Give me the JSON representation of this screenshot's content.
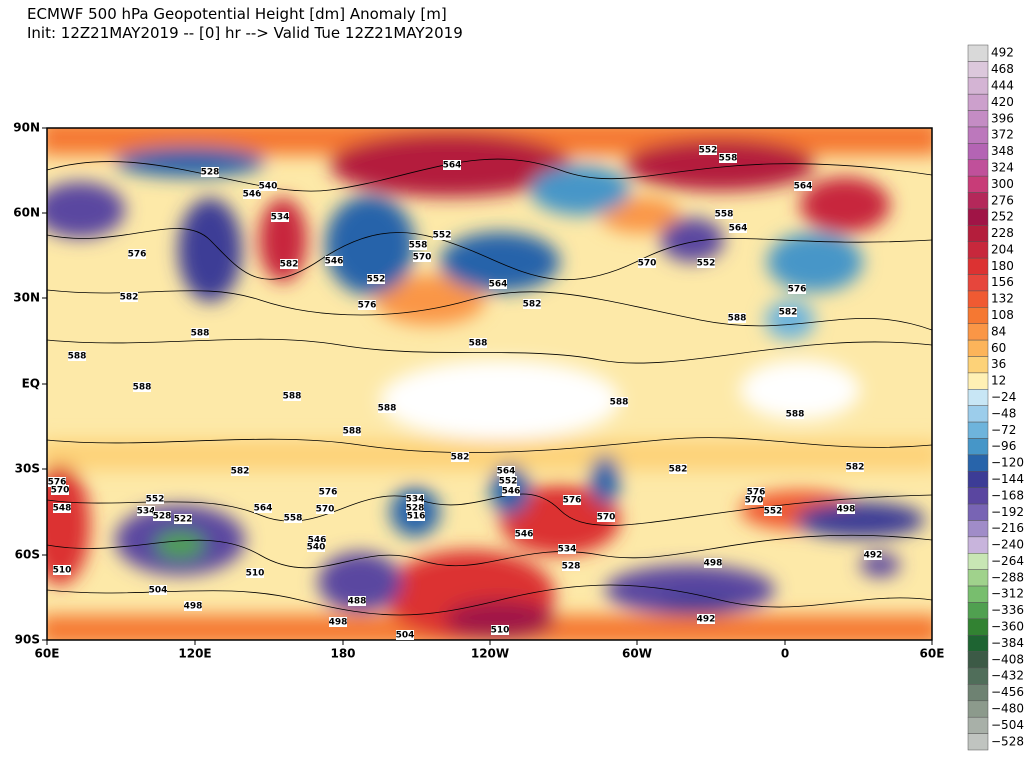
{
  "header": {
    "title": "ECMWF 500 hPa Geopotential Height [dm] Anomaly [m]",
    "subtitle": "Init: 12Z21MAY2019 -- [0] hr --> Valid Tue 12Z21MAY2019"
  },
  "map": {
    "lat_labels": [
      "90N",
      "60N",
      "30N",
      "EQ",
      "30S",
      "60S",
      "90S"
    ],
    "lon_labels": [
      "60E",
      "120E",
      "180",
      "120W",
      "60W",
      "0",
      "60E"
    ],
    "contour_labels": [
      564,
      552,
      558,
      528,
      564,
      546,
      540,
      534,
      558,
      564,
      552,
      558,
      570,
      546,
      582,
      552,
      576,
      564,
      582,
      570,
      552,
      576,
      582,
      588,
      576,
      582,
      588,
      588,
      588,
      588,
      588,
      588,
      588,
      588,
      588,
      582,
      582,
      582,
      582,
      564,
      552,
      546,
      576,
      570,
      576,
      570,
      552,
      534,
      528,
      522,
      564,
      558,
      534,
      528,
      516,
      546,
      534,
      528,
      546,
      540,
      510,
      504,
      498,
      488,
      504,
      498,
      510,
      498,
      492,
      576,
      570,
      552,
      498,
      492,
      576,
      570,
      548,
      510
    ]
  },
  "colorbar": {
    "labels": [
      "492",
      "468",
      "444",
      "420",
      "396",
      "372",
      "348",
      "324",
      "300",
      "276",
      "252",
      "228",
      "204",
      "180",
      "156",
      "132",
      "108",
      "84",
      "60",
      "36",
      "12",
      "−24",
      "−48",
      "−72",
      "−96",
      "−120",
      "−144",
      "−168",
      "−192",
      "−216",
      "−240",
      "−264",
      "−288",
      "−312",
      "−336",
      "−360",
      "−384",
      "−408",
      "−432",
      "−456",
      "−480",
      "−504",
      "−528"
    ],
    "colors": [
      "#d9d9d9",
      "#dcc8dc",
      "#d4b4d4",
      "#cca0cc",
      "#c48cc4",
      "#bc78bc",
      "#b464b4",
      "#c0509a",
      "#c83c78",
      "#b4285a",
      "#a01446",
      "#b41e3c",
      "#c8283c",
      "#dc3232",
      "#e6463c",
      "#f05a32",
      "#f57832",
      "#fa9646",
      "#fcb45a",
      "#fdd278",
      "#fff0b4",
      "#c8e6f5",
      "#9ccdeb",
      "#6eb4dc",
      "#4696c8",
      "#2864aa",
      "#3c3c96",
      "#5a46a0",
      "#7864b4",
      "#a08cc8",
      "#c8b4dc",
      "#c8e6b4",
      "#a0d28c",
      "#78be6e",
      "#50a050",
      "#328232",
      "#1e6432",
      "#3c5a46",
      "#506e5a",
      "#6e8272",
      "#8c9a8c",
      "#a8b0a8",
      "#c0c4c0"
    ]
  }
}
